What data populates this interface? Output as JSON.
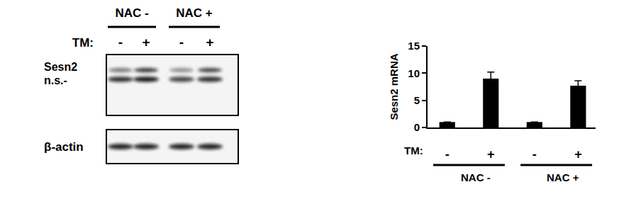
{
  "blot": {
    "header": {
      "groups": [
        "NAC -",
        "NAC +"
      ],
      "treatment_label": "TM:",
      "lanes": [
        "-",
        "+",
        "-",
        "+"
      ]
    },
    "panels": [
      {
        "labels": [
          "Sesn2",
          "n.s.-"
        ]
      },
      {
        "labels": [
          "β-actin"
        ]
      }
    ]
  },
  "chart_data": {
    "type": "bar",
    "categories": [
      "-",
      "+",
      "-",
      "+"
    ],
    "values": [
      1,
      9,
      1,
      7.7
    ],
    "errors": [
      0,
      1.2,
      0,
      0.9
    ],
    "group_labels": [
      "NAC -",
      "NAC -",
      "NAC +",
      "NAC +"
    ],
    "x_label": "TM:",
    "y_label": "Sesn2 mRNA",
    "ylim": [
      0,
      15
    ],
    "yticks": [
      0,
      5,
      10,
      15
    ],
    "color": "#000000",
    "grid": false
  }
}
